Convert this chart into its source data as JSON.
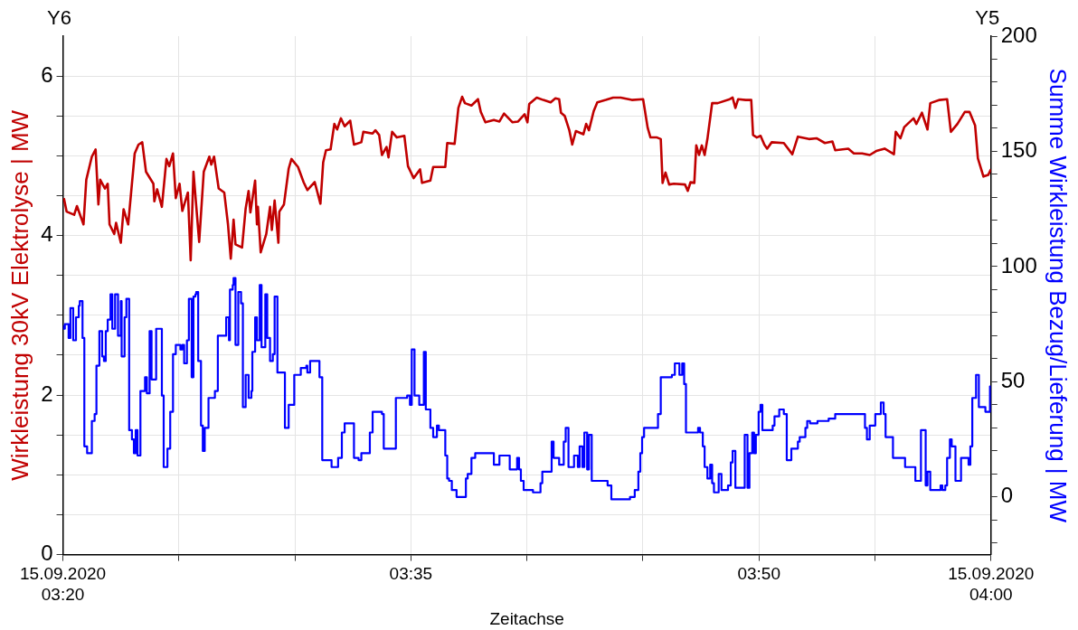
{
  "chart_data": {
    "type": "line",
    "xlabel": "Zeitachse",
    "ylabel": "Wirkleistung 30kV Elektrolyse | MW",
    "y2label": "Summe Wirkleistung Bezug/Lieferung | MW",
    "annotations": [
      "Y6",
      "Y5"
    ],
    "xlim": [
      3.3333,
      4.0
    ],
    "xticks": [
      {
        "value": 3.3333,
        "label": "15.09.2020\n03:20"
      },
      {
        "value": 3.4167,
        "label": null
      },
      {
        "value": 3.5,
        "label": null
      },
      {
        "value": 3.5833,
        "label": "03:35"
      },
      {
        "value": 3.6667,
        "label": null
      },
      {
        "value": 3.75,
        "label": null
      },
      {
        "value": 3.8333,
        "label": "03:50"
      },
      {
        "value": 3.9167,
        "label": null
      },
      {
        "value": 4.0,
        "label": "15.09.2020\n04:00"
      }
    ],
    "ylim": [
      0,
      6.5
    ],
    "yticks": [
      0,
      {
        "value": 0.5,
        "label": null
      },
      {
        "value": 1,
        "label": null
      },
      {
        "value": 1.5,
        "label": null
      },
      2,
      {
        "value": 2.5,
        "label": null
      },
      {
        "value": 3,
        "label": null
      },
      {
        "value": 3.5,
        "label": null
      },
      4,
      {
        "value": 4.5,
        "label": null
      },
      {
        "value": 5,
        "label": null
      },
      {
        "value": 5.5,
        "label": null
      },
      6
    ],
    "y2lim": [
      -25,
      200
    ],
    "y2ticks": [
      {
        "value": -20,
        "label": null
      },
      {
        "value": -10,
        "label": null
      },
      0,
      {
        "value": 10,
        "label": null
      },
      {
        "value": 20,
        "label": null
      },
      {
        "value": 30,
        "label": null
      },
      {
        "value": 40,
        "label": null
      },
      50,
      {
        "value": 60,
        "label": null
      },
      {
        "value": 70,
        "label": null
      },
      {
        "value": 80,
        "label": null
      },
      {
        "value": 90,
        "label": null
      },
      100,
      {
        "value": 110,
        "label": null
      },
      {
        "value": 120,
        "label": null
      },
      {
        "value": 130,
        "label": null
      },
      {
        "value": 140,
        "label": null
      },
      150,
      {
        "value": 160,
        "label": null
      },
      {
        "value": 170,
        "label": null
      },
      {
        "value": 180,
        "label": null
      },
      {
        "value": 190,
        "label": null
      },
      200
    ],
    "grid": true,
    "legend": false,
    "series": [
      {
        "type": "line",
        "axis": "y",
        "color": "#c00000",
        "x": [
          3.334,
          3.336,
          3.3414,
          3.3434,
          3.3481,
          3.3501,
          3.3541,
          3.3568,
          3.3588,
          3.3601,
          3.3635,
          3.3655,
          3.3668,
          3.3702,
          3.3715,
          3.3749,
          3.3769,
          3.3802,
          3.3849,
          3.3876,
          3.3903,
          3.393,
          3.3983,
          3.399,
          3.401,
          3.4044,
          3.4077,
          3.4097,
          3.4124,
          3.4144,
          3.4171,
          3.4191,
          3.4231,
          3.4251,
          3.4271,
          3.4312,
          3.4345,
          3.4385,
          3.4399,
          3.4419,
          3.4452,
          3.4492,
          3.4519,
          3.4539,
          3.4559,
          3.4573,
          3.462,
          3.4646,
          3.4667,
          3.468,
          3.4714,
          3.4727,
          3.4734,
          3.4754,
          3.4794,
          3.4821,
          3.4834,
          3.4854,
          3.4881,
          3.4888,
          3.4921,
          3.4955,
          3.4975,
          3.5022,
          3.5062,
          3.5089,
          3.5142,
          3.5183,
          3.5203,
          3.5223,
          3.5256,
          3.5283,
          3.5303,
          3.533,
          3.5357,
          3.5397,
          3.5424,
          3.5477,
          3.5491,
          3.5558,
          3.5578,
          3.5605,
          3.5625,
          3.5658,
          3.5672,
          3.5698,
          3.5732,
          3.5786,
          3.5812,
          3.5853,
          3.5899,
          3.5913,
          3.5973,
          3.5993,
          3.608,
          3.6094,
          3.6147,
          3.6174,
          3.6201,
          3.6221,
          3.6268,
          3.6315,
          3.6335,
          3.6368,
          3.6429,
          3.6469,
          3.6502,
          3.6563,
          3.6603,
          3.665,
          3.667,
          3.6683,
          3.6737,
          3.6784,
          3.6837,
          3.6871,
          3.6898,
          3.6911,
          3.6938,
          3.6971,
          3.6992,
          3.7018,
          3.7072,
          3.7092,
          3.7112,
          3.7146,
          3.7172,
          3.7233,
          3.7286,
          3.734,
          3.742,
          3.7501,
          3.7534,
          3.7554,
          3.7601,
          3.7628,
          3.7641,
          3.7662,
          3.7688,
          3.7722,
          3.7802,
          3.7822,
          3.7842,
          3.7869,
          3.7883,
          3.7903,
          3.7923,
          3.7943,
          3.7963,
          3.7997,
          3.8037,
          3.8124,
          3.8144,
          3.8164,
          3.8184,
          3.8238,
          3.8278,
          3.8291,
          3.8318,
          3.8345,
          3.8372,
          3.8392,
          3.8425,
          3.8512,
          3.8573,
          3.8613,
          3.8693,
          3.8747,
          3.8807,
          3.8861,
          3.8881,
          3.8975,
          3.9015,
          3.9075,
          3.9129,
          3.9176,
          3.9236,
          3.9303,
          3.9316,
          3.935,
          3.9377,
          3.9444,
          3.9464,
          3.9504,
          3.9544,
          3.9564,
          3.9631,
          3.9685,
          3.9712,
          3.9759,
          3.9812,
          3.9846,
          3.9886,
          3.9906,
          3.9946,
          3.998,
          4.0
        ],
        "values": [
          4.47,
          4.3,
          4.26,
          4.37,
          4.14,
          4.7,
          4.99,
          5.08,
          4.39,
          4.7,
          4.59,
          4.65,
          4.14,
          4.02,
          4.16,
          3.91,
          4.33,
          4.14,
          5.03,
          5.14,
          5.17,
          4.8,
          4.65,
          4.43,
          4.58,
          4.36,
          4.96,
          4.87,
          5.03,
          4.47,
          4.65,
          4.31,
          4.54,
          3.69,
          4.8,
          3.92,
          4.8,
          4.99,
          4.89,
          4.99,
          4.59,
          4.54,
          4.14,
          3.71,
          4.2,
          3.89,
          3.85,
          4.34,
          4.56,
          4.29,
          4.69,
          4.14,
          4.36,
          3.79,
          4.02,
          4.36,
          4.07,
          4.44,
          3.91,
          4.3,
          4.39,
          4.84,
          4.96,
          4.86,
          4.67,
          4.57,
          4.67,
          4.4,
          4.92,
          5.07,
          5.08,
          5.4,
          5.33,
          5.47,
          5.37,
          5.44,
          5.14,
          5.17,
          5.3,
          5.28,
          5.32,
          5.26,
          5.01,
          5.11,
          4.98,
          5.3,
          5.23,
          5.25,
          4.87,
          4.72,
          4.83,
          4.66,
          4.69,
          4.86,
          4.86,
          5.16,
          5.15,
          5.6,
          5.74,
          5.66,
          5.63,
          5.71,
          5.55,
          5.42,
          5.45,
          5.43,
          5.53,
          5.42,
          5.43,
          5.52,
          5.42,
          5.65,
          5.73,
          5.7,
          5.67,
          5.72,
          5.71,
          5.54,
          5.5,
          5.32,
          5.14,
          5.31,
          5.27,
          5.4,
          5.32,
          5.56,
          5.67,
          5.7,
          5.73,
          5.73,
          5.7,
          5.71,
          5.35,
          5.23,
          5.23,
          5.21,
          4.66,
          4.79,
          4.64,
          4.65,
          4.64,
          4.56,
          4.67,
          4.66,
          5.13,
          5.01,
          5.13,
          5.01,
          5.21,
          5.66,
          5.66,
          5.71,
          5.73,
          5.6,
          5.71,
          5.7,
          5.7,
          5.26,
          5.23,
          5.25,
          5.14,
          5.09,
          5.17,
          5.16,
          5.02,
          5.24,
          5.21,
          5.22,
          5.16,
          5.18,
          5.07,
          5.09,
          5.03,
          5.03,
          5.01,
          5.06,
          5.09,
          5.02,
          5.3,
          5.22,
          5.36,
          5.47,
          5.4,
          5.54,
          5.33,
          5.66,
          5.7,
          5.71,
          5.3,
          5.4,
          5.55,
          5.55,
          5.38,
          4.97,
          4.74,
          4.76,
          4.83
        ]
      },
      {
        "type": "step",
        "axis": "y2",
        "color": "#0000ff",
        "x": [
          3.3333,
          3.334,
          3.3347,
          3.3374,
          3.3387,
          3.3407,
          3.3427,
          3.3447,
          3.3454,
          3.3474,
          3.3487,
          3.3507,
          3.3541,
          3.3561,
          3.3574,
          3.3595,
          3.3615,
          3.3628,
          3.3641,
          3.3655,
          3.3675,
          3.3688,
          3.3708,
          3.3729,
          3.3749,
          3.3755,
          3.3776,
          3.3789,
          3.3809,
          3.3829,
          3.3843,
          3.3856,
          3.3869,
          3.389,
          3.3923,
          3.3936,
          3.3956,
          3.397,
          3.4003,
          3.4044,
          3.4057,
          3.4084,
          3.4104,
          3.4124,
          3.4144,
          3.4177,
          3.4191,
          3.4204,
          3.4224,
          3.4238,
          3.4258,
          3.4271,
          3.4285,
          3.4291,
          3.4305,
          3.4325,
          3.4338,
          3.4352,
          3.4379,
          3.4425,
          3.4446,
          3.4506,
          3.4526,
          3.4533,
          3.4553,
          3.4559,
          3.4573,
          3.4593,
          3.4613,
          3.4626,
          3.4646,
          3.4667,
          3.4687,
          3.4694,
          3.4714,
          3.4727,
          3.4747,
          3.476,
          3.4787,
          3.4801,
          3.4821,
          3.4841,
          3.4854,
          3.4874,
          3.4928,
          3.4955,
          3.4995,
          3.5042,
          3.5082,
          3.5089,
          3.5109,
          3.5176,
          3.5196,
          3.5263,
          3.531,
          3.5337,
          3.5357,
          3.539,
          3.5424,
          3.5457,
          3.5477,
          3.5538,
          3.5558,
          3.5625,
          3.5638,
          3.5725,
          3.5806,
          3.5826,
          3.5839,
          3.5859,
          3.5893,
          3.5926,
          3.594,
          3.5973,
          3.5993,
          3.602,
          3.6034,
          3.608,
          3.6094,
          3.6107,
          3.6127,
          3.6161,
          3.6228,
          3.6241,
          3.6268,
          3.6295,
          3.6429,
          3.6469,
          3.6543,
          3.6596,
          3.661,
          3.6623,
          3.6643,
          3.671,
          3.6764,
          3.6777,
          3.6844,
          3.6858,
          3.6898,
          3.6931,
          3.6945,
          3.6965,
          3.7005,
          3.7032,
          3.7045,
          3.7065,
          3.7079,
          3.7099,
          3.7112,
          3.7132,
          3.7246,
          3.7273,
          3.7347,
          3.7407,
          3.7441,
          3.7467,
          3.7481,
          3.7494,
          3.7508,
          3.7608,
          3.7628,
          3.7708,
          3.7729,
          3.7762,
          3.7782,
          3.7796,
          3.7809,
          3.7896,
          3.791,
          3.793,
          3.7943,
          3.7963,
          3.7983,
          3.7997,
          3.801,
          3.8044,
          3.8064,
          3.8111,
          3.8131,
          3.8144,
          3.8164,
          3.8231,
          3.8251,
          3.8265,
          3.8285,
          3.8298,
          3.8311,
          3.8331,
          3.8345,
          3.8358,
          3.8432,
          3.8445,
          3.8479,
          3.8512,
          3.8533,
          3.8566,
          3.8613,
          3.8626,
          3.8667,
          3.868,
          3.87,
          3.8754,
          3.8834,
          3.8881,
          3.9095,
          3.9109,
          3.9129,
          3.9169,
          3.9209,
          3.9229,
          3.9243,
          3.9296,
          3.937,
          3.9383,
          3.9417,
          3.9457,
          3.9497,
          3.9531,
          3.9544,
          3.9564,
          3.9638,
          3.9651,
          3.9672,
          3.9685,
          3.9705,
          3.9718,
          3.9745,
          3.9785,
          3.9839,
          3.9852,
          3.9866,
          3.9893,
          3.9913,
          3.996,
          3.9993,
          4.0
        ],
        "values": [
          74,
          73,
          75,
          69,
          82,
          68,
          78,
          83,
          85,
          69,
          22,
          19,
          33,
          36,
          57,
          72,
          61,
          59,
          72,
          77,
          88,
          73,
          88,
          70,
          85,
          61,
          78,
          86,
          29,
          25,
          19,
          29,
          18,
          46,
          52,
          45,
          72,
          51,
          73,
          44,
          13,
          21,
          37,
          62,
          66,
          64,
          66,
          58,
          68,
          86,
          52,
          87,
          88,
          89,
          59,
          31,
          20,
          30,
          43,
          46,
          70,
          78,
          68,
          90,
          92,
          95,
          66,
          89,
          84,
          39,
          53,
          43,
          46,
          63,
          78,
          68,
          92,
          65,
          88,
          69,
          59,
          62,
          87,
          54,
          30,
          40,
          53,
          56,
          57,
          54,
          59,
          52,
          16,
          13,
          17,
          28,
          32,
          32,
          17,
          16,
          19,
          28,
          37,
          36,
          21,
          43,
          44,
          40,
          64,
          44,
          40,
          63,
          38,
          30,
          26,
          31,
          29,
          18,
          8,
          7,
          3,
          0,
          8,
          10,
          17,
          19,
          14,
          18,
          12,
          17,
          12,
          7,
          3,
          2,
          6,
          11,
          24,
          17,
          14,
          24,
          30,
          13,
          18,
          13,
          22,
          13,
          28,
          12,
          27,
          7,
          5,
          -1,
          -1,
          0,
          3,
          11,
          19,
          26,
          30,
          36,
          52,
          53,
          58,
          53,
          58,
          49,
          28,
          30,
          28,
          22,
          13,
          8,
          14,
          6,
          2,
          10,
          3,
          5,
          15,
          20,
          4,
          27,
          4,
          19,
          28,
          19,
          27,
          37,
          40,
          29,
          31,
          35,
          38,
          36,
          16,
          21,
          24,
          26,
          30,
          33,
          32,
          33,
          34,
          36,
          30,
          25,
          31,
          36,
          41,
          36,
          26,
          17,
          17,
          13,
          13,
          7,
          29,
          5,
          11,
          3,
          5,
          3,
          5,
          17,
          25,
          22,
          7,
          17,
          14,
          22,
          43,
          53,
          39,
          37,
          48,
          48
        ]
      }
    ]
  }
}
